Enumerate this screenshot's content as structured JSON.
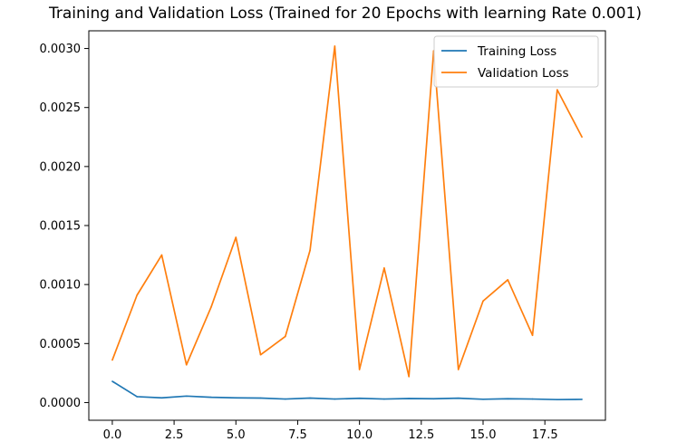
{
  "chart_data": {
    "type": "line",
    "title": "Training and Validation Loss (Trained for 20 Epochs with learning Rate 0.001)",
    "xlabel": "",
    "ylabel": "",
    "x": [
      0,
      1,
      2,
      3,
      4,
      5,
      6,
      7,
      8,
      9,
      10,
      11,
      12,
      13,
      14,
      15,
      16,
      17,
      18,
      19
    ],
    "xlim": [
      -0.95,
      19.95
    ],
    "ylim": [
      -0.00015,
      0.00315
    ],
    "xticks": [
      0.0,
      2.5,
      5.0,
      7.5,
      10.0,
      12.5,
      15.0,
      17.5
    ],
    "xtick_labels": [
      "0.0",
      "2.5",
      "5.0",
      "7.5",
      "10.0",
      "12.5",
      "15.0",
      "17.5"
    ],
    "yticks": [
      0.0,
      0.0005,
      0.001,
      0.0015,
      0.002,
      0.0025,
      0.003
    ],
    "ytick_labels": [
      "0.0000",
      "0.0005",
      "0.0010",
      "0.0015",
      "0.0020",
      "0.0025",
      "0.0030"
    ],
    "grid": false,
    "legend_position": "top-right",
    "series": [
      {
        "name": "Training Loss",
        "color": "#1f77b4",
        "values": [
          0.00018,
          5e-05,
          4e-05,
          5.5e-05,
          4.5e-05,
          4e-05,
          3.8e-05,
          3e-05,
          3.8e-05,
          3e-05,
          3.6e-05,
          3e-05,
          3.4e-05,
          3.2e-05,
          3.7e-05,
          2.8e-05,
          3.2e-05,
          3e-05,
          2.5e-05,
          2.7e-05
        ]
      },
      {
        "name": "Validation Loss",
        "color": "#ff7f0e",
        "values": [
          0.00036,
          0.00091,
          0.00125,
          0.00032,
          0.00081,
          0.0014,
          0.000405,
          0.00056,
          0.00129,
          0.00302,
          0.00028,
          0.00114,
          0.00022,
          0.00298,
          0.00028,
          0.00086,
          0.00104,
          0.00057,
          0.00265,
          0.00225
        ]
      }
    ]
  }
}
